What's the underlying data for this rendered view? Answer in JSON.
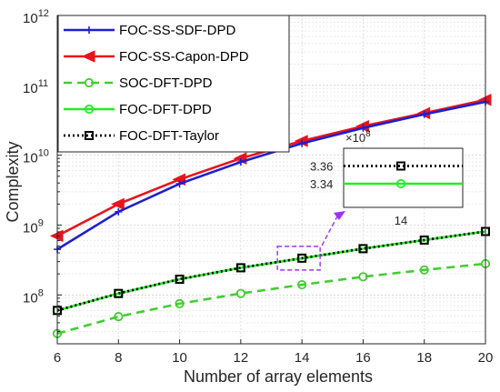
{
  "chart_data": {
    "type": "line",
    "xlabel": "Number of array elements",
    "ylabel": "Complexity",
    "x": [
      6,
      8,
      10,
      12,
      14,
      16,
      18,
      20
    ],
    "xlim": [
      6,
      20
    ],
    "ylim": [
      20000000,
      1000000000000
    ],
    "yscale": "log",
    "x_ticks": [
      "6",
      "8",
      "10",
      "12",
      "14",
      "16",
      "18",
      "20"
    ],
    "y_ticks": [
      {
        "value": 100000000,
        "base": "10",
        "exp": "8"
      },
      {
        "value": 1000000000,
        "base": "10",
        "exp": "9"
      },
      {
        "value": 10000000000,
        "base": "10",
        "exp": "10"
      },
      {
        "value": 100000000000,
        "base": "10",
        "exp": "11"
      },
      {
        "value": 1000000000000,
        "base": "10",
        "exp": "12"
      }
    ],
    "grid": true,
    "legend_position": "top-left",
    "series": [
      {
        "name": "FOC-SS-SDF-DPD",
        "color": "#1f1fcf",
        "marker": "plus",
        "dash": "",
        "values": [
          450000000,
          1550000000,
          3900000000,
          8000000000,
          14800000000,
          24500000000,
          38500000000,
          58000000000
        ]
      },
      {
        "name": "FOC-SS-Capon-DPD",
        "color": "#e8141c",
        "marker": "triangle-left",
        "dash": "",
        "values": [
          700000000,
          2000000000,
          4500000000,
          9000000000,
          16000000000,
          26000000000,
          40000000000,
          62000000000
        ]
      },
      {
        "name": "SOC-DFT-DPD",
        "color": "#44cc33",
        "marker": "circle",
        "dash": "9,6",
        "values": [
          28000000,
          49000000,
          75000000,
          105000000,
          140000000,
          182000000,
          228000000,
          280000000
        ]
      },
      {
        "name": "FOC-DFT-DPD",
        "color": "#22ee22",
        "marker": "circle",
        "dash": "",
        "values": [
          60000000,
          105000000,
          168000000,
          245000000,
          334000000,
          460000000,
          610000000,
          810000000
        ]
      },
      {
        "name": "FOC-DFT-Taylor",
        "color": "#000000",
        "marker": "square",
        "dash": "2,3",
        "values": [
          60000000,
          105000000,
          168000000,
          245000000,
          336000000,
          460000000,
          610000000,
          810000000
        ]
      }
    ],
    "inset": {
      "multiplier_base": "×10",
      "multiplier_exp": "8",
      "y_ticks": [
        "3.36",
        "3.34"
      ],
      "x_label": "14",
      "ylim": [
        3.32,
        3.37
      ],
      "taylor_value": 3.355,
      "dft_value": 3.34
    }
  }
}
